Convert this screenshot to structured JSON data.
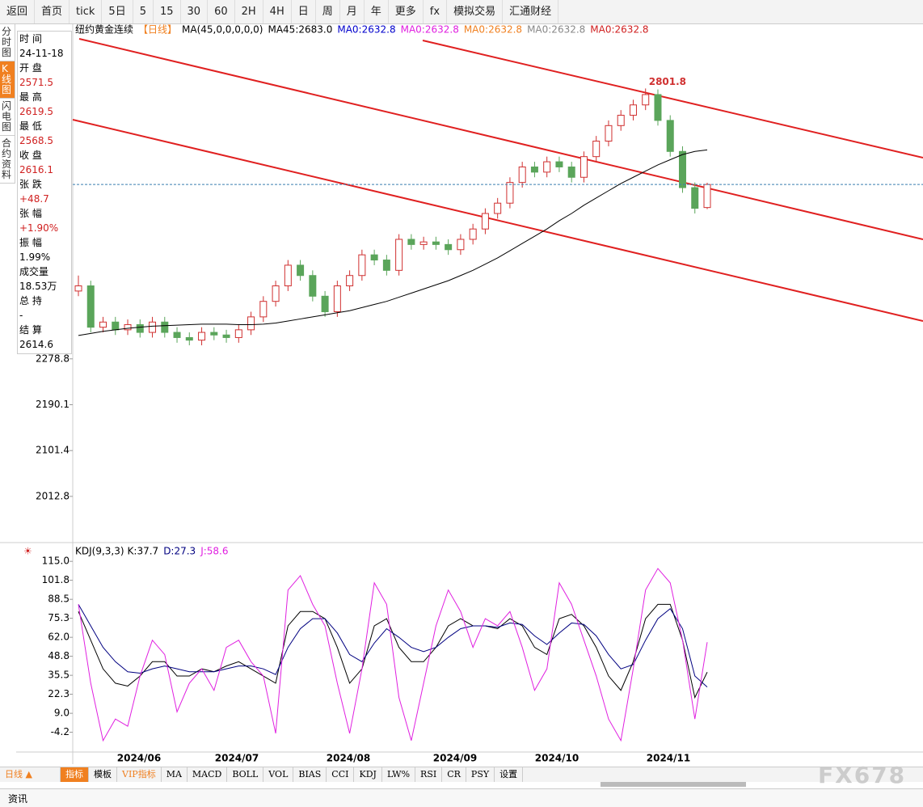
{
  "toolbar": [
    "返回",
    "首页",
    "tick",
    "5日",
    "5",
    "15",
    "30",
    "60",
    "2H",
    "4H",
    "日",
    "周",
    "月",
    "年",
    "更多",
    "fx",
    "模拟交易",
    "汇通财经"
  ],
  "side_tabs": [
    "分时图",
    "K线图",
    "闪电图",
    "合约资料"
  ],
  "info": [
    [
      "时 间",
      "24-11-18"
    ],
    [
      "开 盘",
      "2571.5"
    ],
    [
      "最 高",
      "2619.5"
    ],
    [
      "最 低",
      "2568.5"
    ],
    [
      "收 盘",
      "2616.1"
    ],
    [
      "张 跌",
      "+48.7"
    ],
    [
      "张 幅",
      "+1.90%"
    ],
    [
      "振 幅",
      "1.99%"
    ],
    [
      "成交量",
      "18.53万"
    ],
    [
      "总 持",
      "-"
    ],
    [
      "结 算",
      "2614.6"
    ]
  ],
  "legend": {
    "symbol": "纽约黄金连续",
    "period": "【日线】",
    "items": [
      {
        "text": "MA(45,0,0,0,0,0)",
        "color": "#000000"
      },
      {
        "text": "MA45:2683.0",
        "color": "#000000"
      },
      {
        "text": "MA0:2632.8",
        "color": "#0000cc"
      },
      {
        "text": "MA0:2632.8",
        "color": "#e020e0"
      },
      {
        "text": "MA0:2632.8",
        "color": "#f08020"
      },
      {
        "text": "MA0:2632.8",
        "color": "#888888"
      },
      {
        "text": "MA0:2632.8",
        "color": "#d02020"
      }
    ]
  },
  "x_labels": [
    "2024/06",
    "2024/07",
    "2024/08",
    "2024/09",
    "2024/10",
    "2024/11"
  ],
  "chart_data": [
    {
      "type": "candlestick",
      "ylim": [
        1925,
        2926
      ],
      "yticks": [
        2278.8,
        2190.1,
        2101.4,
        2012.8
      ],
      "up_color": "#d03030",
      "down_color": "#5aa55a",
      "last_color": "#3a7fb0",
      "candles": [
        [
          2410,
          2440,
          2400,
          2420
        ],
        [
          2420,
          2430,
          2330,
          2340
        ],
        [
          2340,
          2360,
          2330,
          2350
        ],
        [
          2350,
          2360,
          2325,
          2335
        ],
        [
          2335,
          2355,
          2325,
          2345
        ],
        [
          2345,
          2355,
          2320,
          2330
        ],
        [
          2330,
          2360,
          2320,
          2350
        ],
        [
          2350,
          2360,
          2320,
          2330
        ],
        [
          2330,
          2340,
          2310,
          2320
        ],
        [
          2320,
          2330,
          2305,
          2315
        ],
        [
          2315,
          2340,
          2305,
          2330
        ],
        [
          2330,
          2340,
          2315,
          2325
        ],
        [
          2325,
          2335,
          2310,
          2320
        ],
        [
          2320,
          2345,
          2310,
          2335
        ],
        [
          2335,
          2370,
          2325,
          2360
        ],
        [
          2360,
          2400,
          2350,
          2390
        ],
        [
          2390,
          2430,
          2380,
          2420
        ],
        [
          2420,
          2470,
          2410,
          2460
        ],
        [
          2460,
          2470,
          2430,
          2440
        ],
        [
          2440,
          2450,
          2390,
          2400
        ],
        [
          2400,
          2410,
          2360,
          2370
        ],
        [
          2370,
          2430,
          2360,
          2420
        ],
        [
          2420,
          2450,
          2410,
          2440
        ],
        [
          2440,
          2490,
          2430,
          2480
        ],
        [
          2480,
          2490,
          2460,
          2470
        ],
        [
          2470,
          2480,
          2440,
          2450
        ],
        [
          2450,
          2520,
          2440,
          2510
        ],
        [
          2510,
          2520,
          2490,
          2500
        ],
        [
          2500,
          2515,
          2490,
          2505
        ],
        [
          2505,
          2515,
          2490,
          2500
        ],
        [
          2500,
          2510,
          2480,
          2490
        ],
        [
          2490,
          2520,
          2480,
          2510
        ],
        [
          2510,
          2540,
          2500,
          2530
        ],
        [
          2530,
          2570,
          2520,
          2560
        ],
        [
          2560,
          2590,
          2550,
          2580
        ],
        [
          2580,
          2630,
          2570,
          2620
        ],
        [
          2620,
          2660,
          2610,
          2650
        ],
        [
          2650,
          2660,
          2630,
          2640
        ],
        [
          2640,
          2670,
          2630,
          2660
        ],
        [
          2660,
          2670,
          2640,
          2650
        ],
        [
          2650,
          2660,
          2620,
          2630
        ],
        [
          2630,
          2680,
          2620,
          2670
        ],
        [
          2670,
          2710,
          2660,
          2700
        ],
        [
          2700,
          2740,
          2690,
          2730
        ],
        [
          2730,
          2760,
          2720,
          2750
        ],
        [
          2750,
          2780,
          2740,
          2770
        ],
        [
          2770,
          2801.8,
          2760,
          2790
        ],
        [
          2790,
          2800,
          2730,
          2740
        ],
        [
          2740,
          2750,
          2670,
          2680
        ],
        [
          2680,
          2690,
          2600,
          2610
        ],
        [
          2610,
          2620,
          2560,
          2570
        ],
        [
          2571.5,
          2619.5,
          2568.5,
          2616.1
        ]
      ],
      "ma": {
        "name": "MA45",
        "color": "#000000",
        "values": [
          2324,
          2328,
          2332,
          2335,
          2338,
          2340,
          2342,
          2343,
          2344,
          2345,
          2346,
          2346,
          2346,
          2345,
          2345,
          2346,
          2348,
          2352,
          2356,
          2360,
          2364,
          2368,
          2372,
          2378,
          2384,
          2390,
          2398,
          2406,
          2414,
          2422,
          2430,
          2440,
          2450,
          2462,
          2474,
          2488,
          2502,
          2516,
          2530,
          2546,
          2560,
          2576,
          2590,
          2604,
          2618,
          2630,
          2642,
          2654,
          2664,
          2674,
          2680,
          2683
        ]
      }
    },
    {
      "type": "line",
      "title": "KDJ(9,3,3)",
      "ylim": [
        -18,
        123
      ],
      "yticks": [
        {
          "value": 115,
          "label": "115.0"
        },
        101.8,
        88.5,
        75.3,
        {
          "value": 62,
          "label": "62.0"
        },
        48.8,
        35.5,
        22.3,
        {
          "value": 9,
          "label": "9.0"
        },
        -4.2
      ],
      "series": [
        {
          "name": "K:37.7",
          "color": "#000000",
          "values": [
            80,
            60,
            40,
            30,
            28,
            35,
            45,
            45,
            35,
            35,
            40,
            38,
            42,
            45,
            40,
            35,
            30,
            70,
            80,
            80,
            75,
            55,
            30,
            40,
            70,
            75,
            55,
            45,
            45,
            55,
            70,
            75,
            70,
            70,
            68,
            75,
            70,
            55,
            50,
            75,
            78,
            70,
            55,
            35,
            25,
            45,
            75,
            85,
            85,
            60,
            20,
            37.7
          ]
        },
        {
          "name": "D:27.3",
          "color": "#000080",
          "values": [
            85,
            70,
            55,
            45,
            38,
            37,
            40,
            42,
            40,
            38,
            38,
            38,
            40,
            42,
            42,
            40,
            36,
            55,
            68,
            75,
            75,
            65,
            50,
            45,
            58,
            68,
            62,
            55,
            52,
            55,
            62,
            68,
            70,
            70,
            69,
            72,
            71,
            63,
            57,
            65,
            72,
            71,
            63,
            50,
            40,
            43,
            60,
            75,
            82,
            68,
            35,
            27.3
          ]
        },
        {
          "name": "J:58.6",
          "color": "#e020e0",
          "values": [
            85,
            30,
            -10,
            5,
            0,
            35,
            60,
            50,
            10,
            30,
            40,
            25,
            55,
            60,
            45,
            35,
            -5,
            95,
            105,
            85,
            70,
            30,
            -5,
            40,
            100,
            85,
            20,
            -10,
            30,
            70,
            95,
            80,
            55,
            75,
            70,
            80,
            55,
            25,
            40,
            100,
            85,
            60,
            35,
            5,
            -10,
            40,
            95,
            110,
            100,
            60,
            5,
            58.6
          ]
        }
      ]
    }
  ],
  "footer": {
    "period": "日线 ▲",
    "tabs": [
      "指标",
      "模板",
      "VIP指标",
      "MA",
      "MACD",
      "BOLL",
      "VOL",
      "BIAS",
      "CCI",
      "KDJ",
      "LW%",
      "RSI",
      "CR",
      "PSY",
      "设置"
    ],
    "news": "资讯",
    "watermark": "FX678"
  }
}
